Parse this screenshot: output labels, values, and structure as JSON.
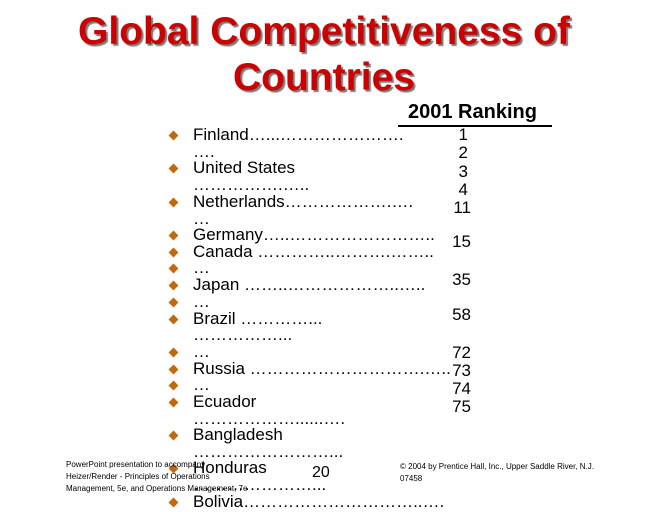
{
  "title": {
    "line1": "Global Competitiveness of",
    "line2": "Countries"
  },
  "ranking_header": "2001 Ranking",
  "lines": [
    "Finland…...………………….",
    "….",
    "United States",
    "…………….…..",
    "Netherlands……………….….",
    "…",
    "Germany…..……………………..",
    "Canada …………..……….……..",
    "…",
    "Japan ……..………………..…..",
    "…",
    "Brazil …………...",
    "……………...",
    "…",
    "Russia ………………………….…..",
    "…",
    "Ecuador",
    "………………......….",
    "Bangladesh",
    "……………………...",
    "Honduras",
    "…………………...",
    "Bolivia…………………………..…."
  ],
  "bulleted": [
    0,
    2,
    4,
    6,
    7,
    8,
    9,
    10,
    11,
    13,
    14,
    15,
    16,
    18,
    20,
    22
  ],
  "ranks": [
    "1",
    "2",
    "3",
    "4",
    "11",
    "15",
    "35",
    "58",
    "72",
    "73",
    "74",
    "75"
  ],
  "footer": {
    "left1": "PowerPoint presentation to accompany",
    "left2": "Heizer/Render - Principles of Operations",
    "left3": "Management, 5e, and Operations Management, 7e",
    "page": "20",
    "right1": "© 2004 by Prentice Hall, Inc., Upper Saddle River, N.J.",
    "right2": "07458"
  },
  "colors": {
    "title": "#cc0000",
    "bullet": "#c06a10"
  }
}
